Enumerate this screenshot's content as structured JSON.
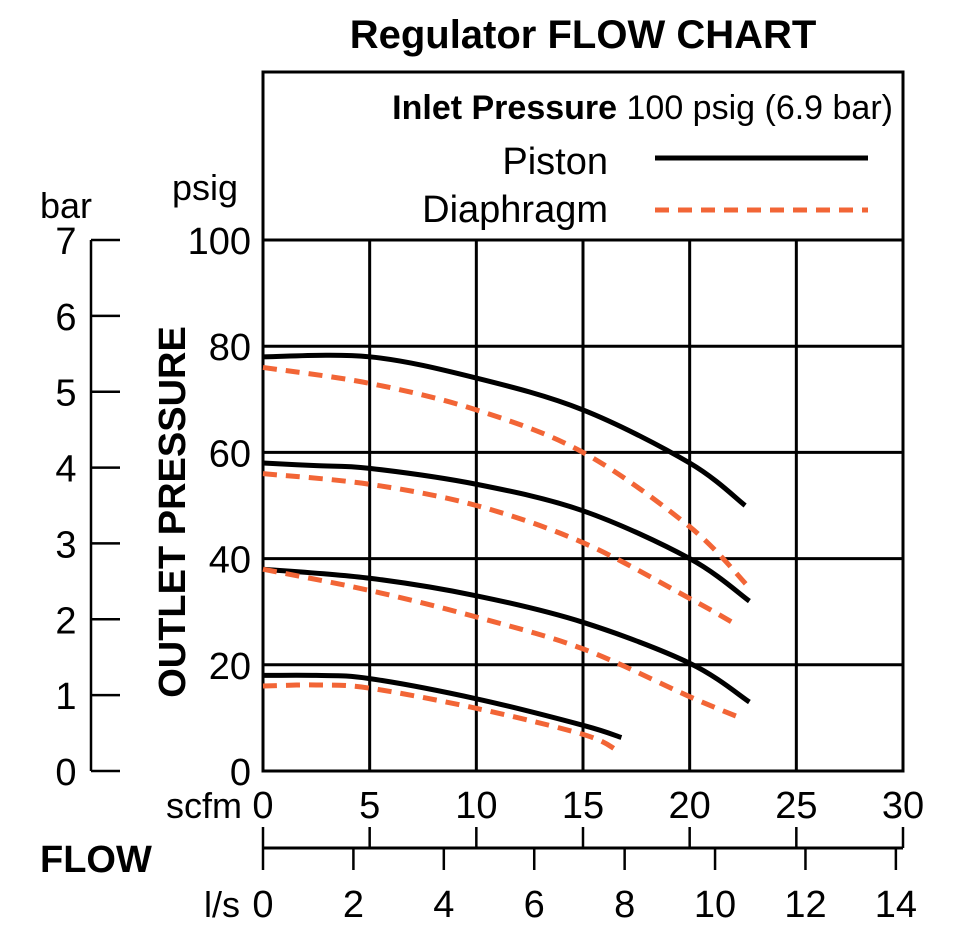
{
  "chart_data": {
    "type": "line",
    "title": "Regulator FLOW CHART",
    "legend": {
      "heading_bold": "Inlet Pressure",
      "heading_rest": "100 psig (6.9 bar)",
      "placement": "top-right",
      "entries": [
        {
          "name": "Piston",
          "color": "#000000",
          "style": "solid"
        },
        {
          "name": "Diaphragm",
          "color": "#f26536",
          "style": "dashed"
        }
      ]
    },
    "ylabel": "OUTLET PRESSURE",
    "y_unit_primary": "psig",
    "y_unit_secondary": "bar",
    "xlabel": "FLOW",
    "x_unit_primary": "scfm",
    "x_unit_secondary": "l/s",
    "xlim": [
      0,
      30
    ],
    "ylim": [
      0,
      100
    ],
    "x_ticks": [
      "0",
      "5",
      "10",
      "15",
      "20",
      "25",
      "30"
    ],
    "y_ticks": [
      "0",
      "20",
      "40",
      "60",
      "80",
      "100"
    ],
    "bar_ticks": [
      "0",
      "1",
      "2",
      "3",
      "4",
      "5",
      "6",
      "7"
    ],
    "ls_ticks": [
      "0",
      "2",
      "4",
      "6",
      "8",
      "10",
      "12",
      "14"
    ],
    "grid": true,
    "series": [
      {
        "name": "Piston",
        "group": 1,
        "x": [
          0,
          5,
          10,
          15,
          20,
          22.6
        ],
        "y": [
          78,
          78,
          74,
          68,
          58,
          50
        ]
      },
      {
        "name": "Diaphragm",
        "group": 1,
        "x": [
          0,
          5,
          10,
          15,
          20,
          22.8
        ],
        "y": [
          76,
          73,
          68,
          60,
          46,
          34.5
        ]
      },
      {
        "name": "Piston",
        "group": 2,
        "x": [
          0,
          2.5,
          5,
          10,
          15,
          20,
          22.8
        ],
        "y": [
          58,
          57.5,
          57,
          54,
          49,
          40,
          32
        ]
      },
      {
        "name": "Diaphragm",
        "group": 2,
        "x": [
          0,
          5,
          10,
          15,
          20,
          22
        ],
        "y": [
          56,
          54,
          50,
          43,
          32.5,
          28
        ]
      },
      {
        "name": "Piston",
        "group": 3,
        "x": [
          0,
          5,
          10,
          15,
          20,
          22.8
        ],
        "y": [
          38,
          36.3,
          33,
          28,
          20.3,
          13
        ]
      },
      {
        "name": "Diaphragm",
        "group": 3,
        "x": [
          0,
          5,
          10,
          15,
          20,
          22.2
        ],
        "y": [
          38,
          34,
          29,
          23,
          14,
          10.3
        ]
      },
      {
        "name": "Piston",
        "group": 4,
        "x": [
          0,
          2.5,
          5,
          10,
          15,
          16.8
        ],
        "y": [
          18,
          18,
          17.4,
          13.6,
          8.6,
          6.3
        ]
      },
      {
        "name": "Diaphragm",
        "group": 4,
        "x": [
          0,
          2.5,
          5,
          10,
          15,
          16.6
        ],
        "y": [
          16,
          16.2,
          15.6,
          11.8,
          6.9,
          3.9
        ]
      }
    ]
  }
}
